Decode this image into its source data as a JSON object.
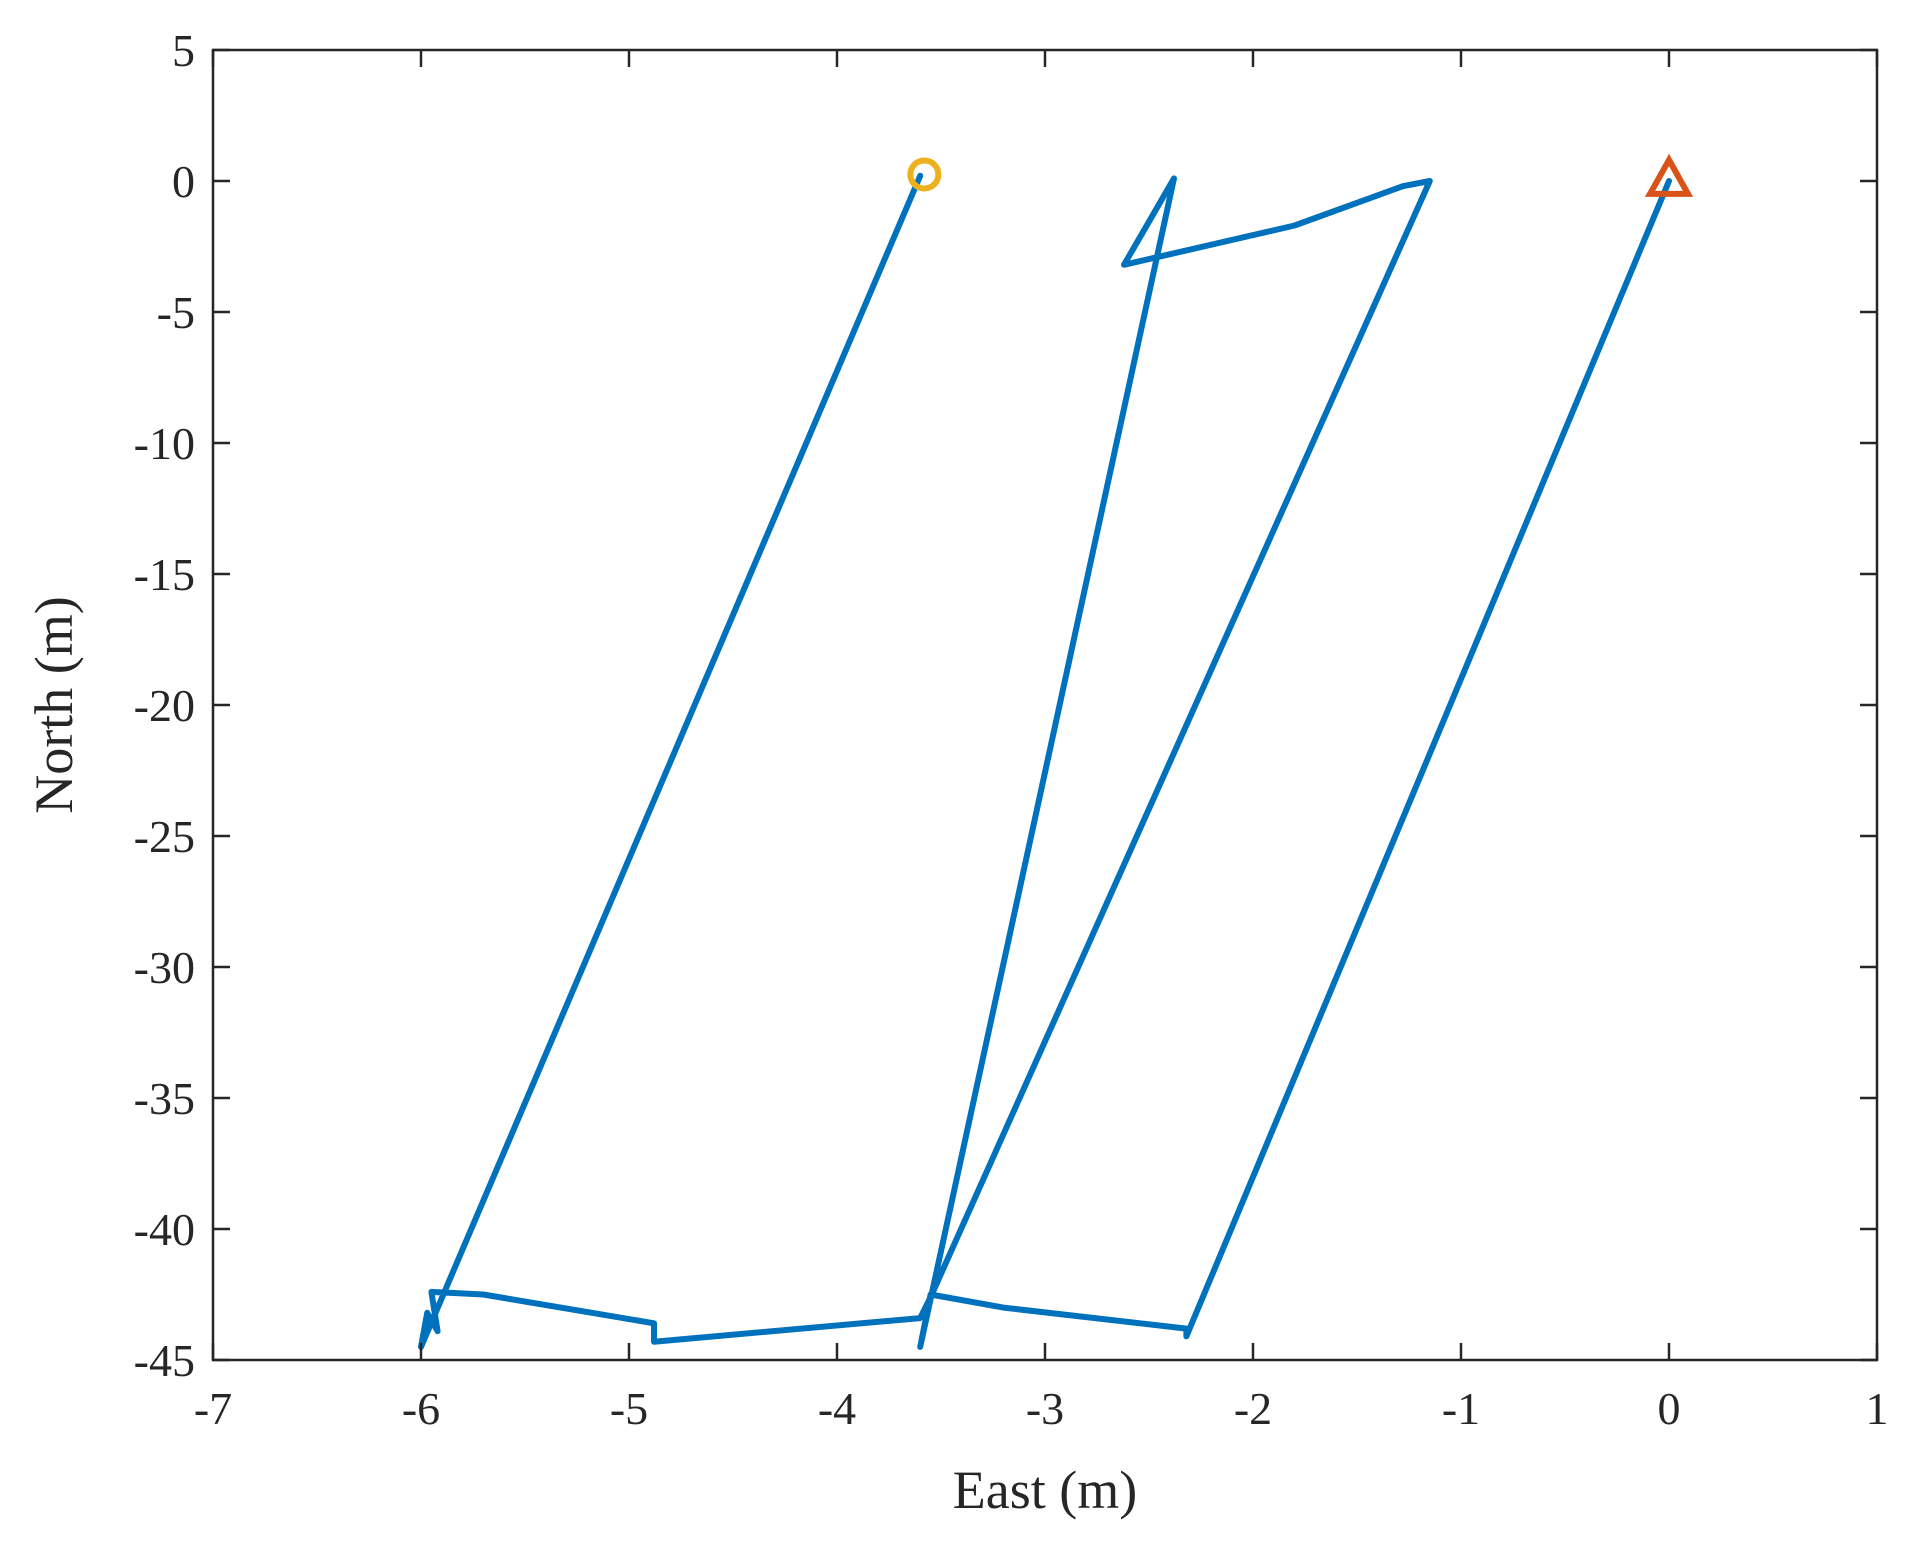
{
  "chart_data": {
    "type": "line",
    "title": "",
    "xlabel": "East (m)",
    "ylabel": "North (m)",
    "xlim": [
      -7,
      1
    ],
    "ylim": [
      -45,
      5
    ],
    "xticks": [
      -7,
      -6,
      -5,
      -4,
      -3,
      -2,
      -1,
      0,
      1
    ],
    "yticks": [
      5,
      0,
      -5,
      -10,
      -15,
      -20,
      -25,
      -30,
      -35,
      -40,
      -45
    ],
    "grid": false,
    "legend": "none",
    "colors": {
      "track": "#0072BD",
      "start_marker": "#D95319",
      "end_marker": "#EDB120",
      "axes": "#262626"
    },
    "series": [
      {
        "points": [
          [
            0.0,
            0.0
          ],
          [
            -2.32,
            -44.1
          ],
          [
            -2.32,
            -43.8
          ],
          [
            -3.2,
            -43.0
          ],
          [
            -3.55,
            -42.5
          ],
          [
            -3.6,
            -44.5
          ],
          [
            -2.38,
            0.1
          ],
          [
            -2.62,
            -3.2
          ],
          [
            -1.8,
            -1.7
          ],
          [
            -1.28,
            -0.2
          ],
          [
            -1.15,
            0.0
          ],
          [
            -3.55,
            -42.6
          ],
          [
            -3.6,
            -43.4
          ],
          [
            -4.88,
            -44.3
          ],
          [
            -4.88,
            -43.6
          ],
          [
            -5.7,
            -42.5
          ],
          [
            -5.95,
            -42.4
          ],
          [
            -5.92,
            -43.9
          ],
          [
            -5.97,
            -43.2
          ],
          [
            -6.0,
            -44.5
          ],
          [
            -3.6,
            0.2
          ]
        ]
      }
    ],
    "markers": [
      {
        "shape": "triangle",
        "x": 0.0,
        "y": 0.0,
        "color": "#D95319"
      },
      {
        "shape": "circle",
        "x": -3.58,
        "y": 0.25,
        "color": "#EDB120"
      }
    ]
  }
}
